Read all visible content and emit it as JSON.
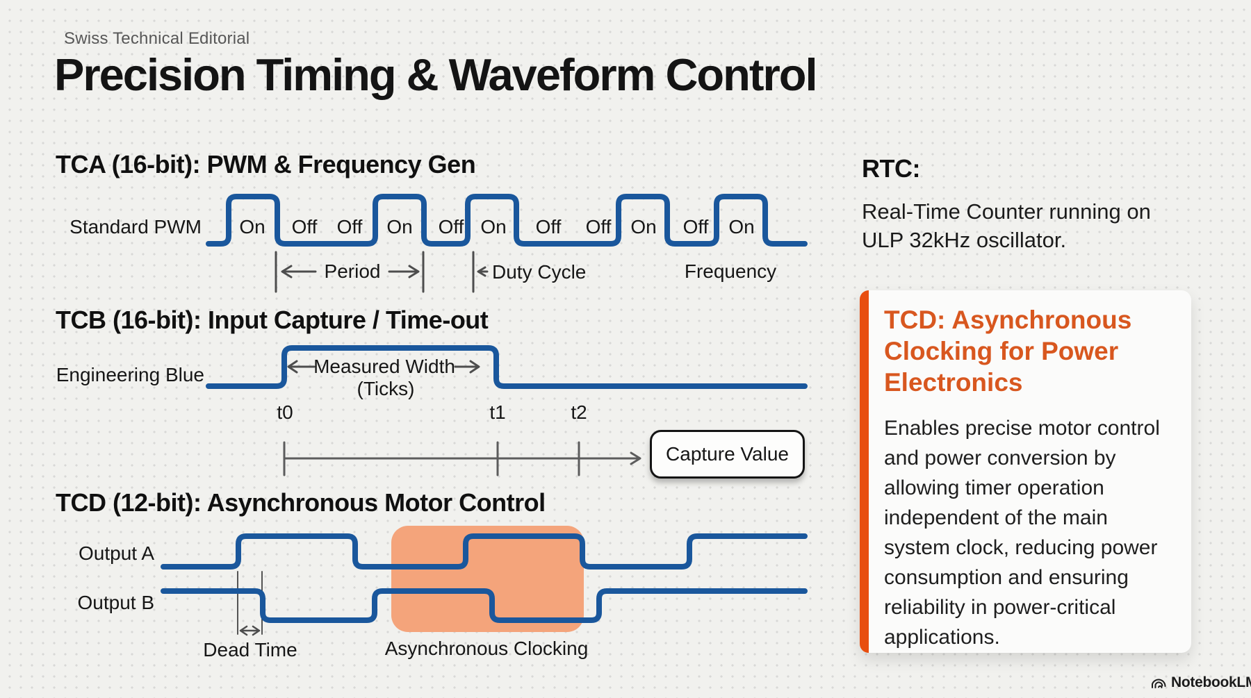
{
  "page": {
    "kicker": "Swiss Technical Editorial",
    "title": "Precision Timing & Waveform Control"
  },
  "tca": {
    "heading": "TCA (16-bit): PWM & Frequency Gen",
    "wave_label": "Standard PWM",
    "pulse_labels": [
      "On",
      "Off",
      "Off",
      "On",
      "Off",
      "On",
      "Off",
      "Off",
      "On",
      "Off",
      "On"
    ],
    "period_label": "Period",
    "duty_cycle_label": "Duty Cycle",
    "frequency_label": "Frequency"
  },
  "tcb": {
    "heading": "TCB (16-bit): Input Capture / Time-out",
    "wave_label": "Engineering Blue",
    "measured_width_label": "Measured Width",
    "ticks_label": "(Ticks)",
    "timeline_labels": [
      "t0",
      "t1",
      "t2"
    ],
    "capture_button": "Capture Value"
  },
  "tcd": {
    "heading": "TCD (12-bit): Asynchronous Motor Control",
    "output_a_label": "Output A",
    "output_b_label": "Output B",
    "dead_time_label": "Dead Time",
    "async_clocking_label": "Asynchronous Clocking"
  },
  "rtc": {
    "heading": "RTC:",
    "body": [
      "Real-Time Counter running on",
      "ULP 32kHz oscillator."
    ]
  },
  "tcd_card": {
    "heading": [
      "TCD: Asynchronous",
      "Clocking for Power",
      "Electronics"
    ],
    "body": [
      "Enables precise motor control",
      "and power conversion by",
      "allowing timer operation",
      "independent of the main",
      "system clock, reducing power",
      "consumption and ensuring",
      "reliability in power-critical",
      "applications."
    ]
  },
  "footer": {
    "brand": "NotebookLM"
  },
  "colors": {
    "wave_blue": "#1a579c",
    "annotation_gray": "#4d4d4d",
    "highlight_orange": "#f4a47b",
    "accent_orange": "#e84e0f",
    "heading_orange": "#d8571f"
  }
}
